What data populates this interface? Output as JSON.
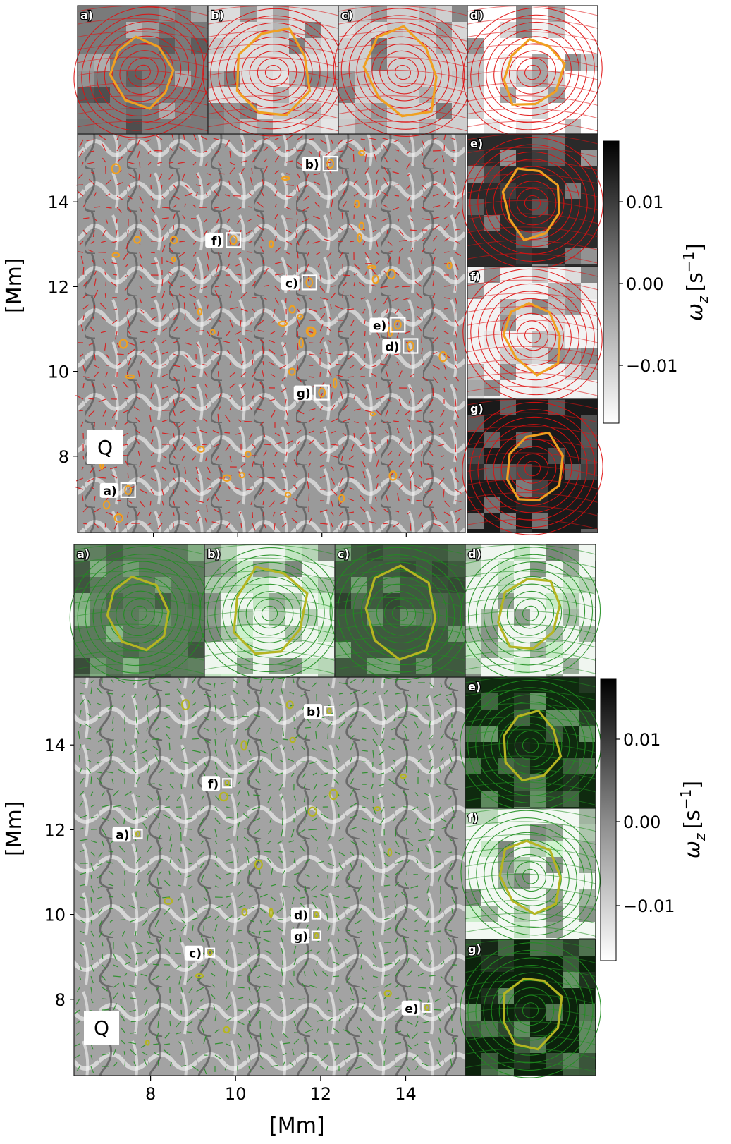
{
  "panels": [
    {
      "id": "top",
      "vector_color": "#e01010",
      "contour_color": "#f0a020",
      "frame_color": "#222222",
      "inset_labels": [
        "a)",
        "b)",
        "c)",
        "d)",
        "e)",
        "f)",
        "g)"
      ],
      "main_labels": [
        {
          "text": "a)",
          "x": 7.4,
          "y": 7.2
        },
        {
          "text": "b)",
          "x": 12.2,
          "y": 14.9
        },
        {
          "text": "c)",
          "x": 11.7,
          "y": 12.1
        },
        {
          "text": "d)",
          "x": 14.1,
          "y": 10.6
        },
        {
          "text": "e)",
          "x": 13.8,
          "y": 11.1
        },
        {
          "text": "f)",
          "x": 9.9,
          "y": 13.1
        },
        {
          "text": "g)",
          "x": 12.0,
          "y": 9.5
        }
      ],
      "q_label": "Q",
      "y_ticks": [
        "8",
        "10",
        "12",
        "14"
      ],
      "y_tick_values": [
        8,
        10,
        12,
        14
      ],
      "ylabel": "[Mm]",
      "colorbar": {
        "ticks": [
          "0.01",
          "0.00",
          "−0.01"
        ],
        "label": "ωz [s⁻¹]",
        "label_main": "ω",
        "label_sub": "z",
        "label_unit": "[s",
        "label_sup": "−1",
        "label_close": "]"
      }
    },
    {
      "id": "bottom",
      "vector_color": "#1f8f1f",
      "contour_color": "#b5b521",
      "frame_color": "#222222",
      "inset_labels": [
        "a)",
        "b)",
        "c)",
        "d)",
        "e)",
        "f)",
        "g)"
      ],
      "main_labels": [
        {
          "text": "a)",
          "x": 7.7,
          "y": 11.9
        },
        {
          "text": "b)",
          "x": 12.2,
          "y": 14.8
        },
        {
          "text": "c)",
          "x": 9.4,
          "y": 9.1
        },
        {
          "text": "d)",
          "x": 11.9,
          "y": 10.0
        },
        {
          "text": "e)",
          "x": 14.5,
          "y": 7.8
        },
        {
          "text": "f)",
          "x": 9.8,
          "y": 13.1
        },
        {
          "text": "g)",
          "x": 11.9,
          "y": 9.5
        }
      ],
      "q_label": "Q",
      "y_ticks": [
        "8",
        "10",
        "12",
        "14"
      ],
      "y_tick_values": [
        8,
        10,
        12,
        14
      ],
      "ylabel": "[Mm]",
      "colorbar": {
        "ticks": [
          "0.01",
          "0.00",
          "−0.01"
        ],
        "label": "ωz [s⁻¹]",
        "label_main": "ω",
        "label_sub": "z",
        "label_unit": "[s",
        "label_sup": "−1",
        "label_close": "]"
      }
    }
  ],
  "x_axis": {
    "ticks": [
      "8",
      "10",
      "12",
      "14"
    ],
    "tick_values": [
      8,
      10,
      12,
      14
    ],
    "label": "[Mm]"
  }
}
